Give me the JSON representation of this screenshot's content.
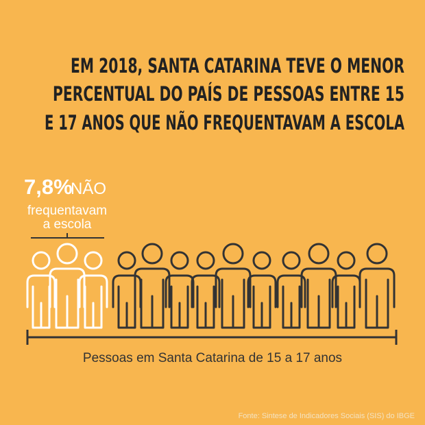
{
  "title_lines": [
    "EM 2018, SANTA CATARINA TEVE O MENOR",
    "PERCENTUAL DO PAÍS DE PESSOAS ENTRE  15",
    "E 17 ANOS QUE NÃO FREQUENTAVAM A ESCOLA"
  ],
  "highlight": {
    "value": "7,8%",
    "word": "NÃO",
    "line1": "frequentavam",
    "line2": "a escola"
  },
  "axis_label": "Pessoas em Santa Catarina de 15 a 17 anos",
  "source": "Fonte: Sintese de Indicadores Sociais (SIS) do IBGE"
}
